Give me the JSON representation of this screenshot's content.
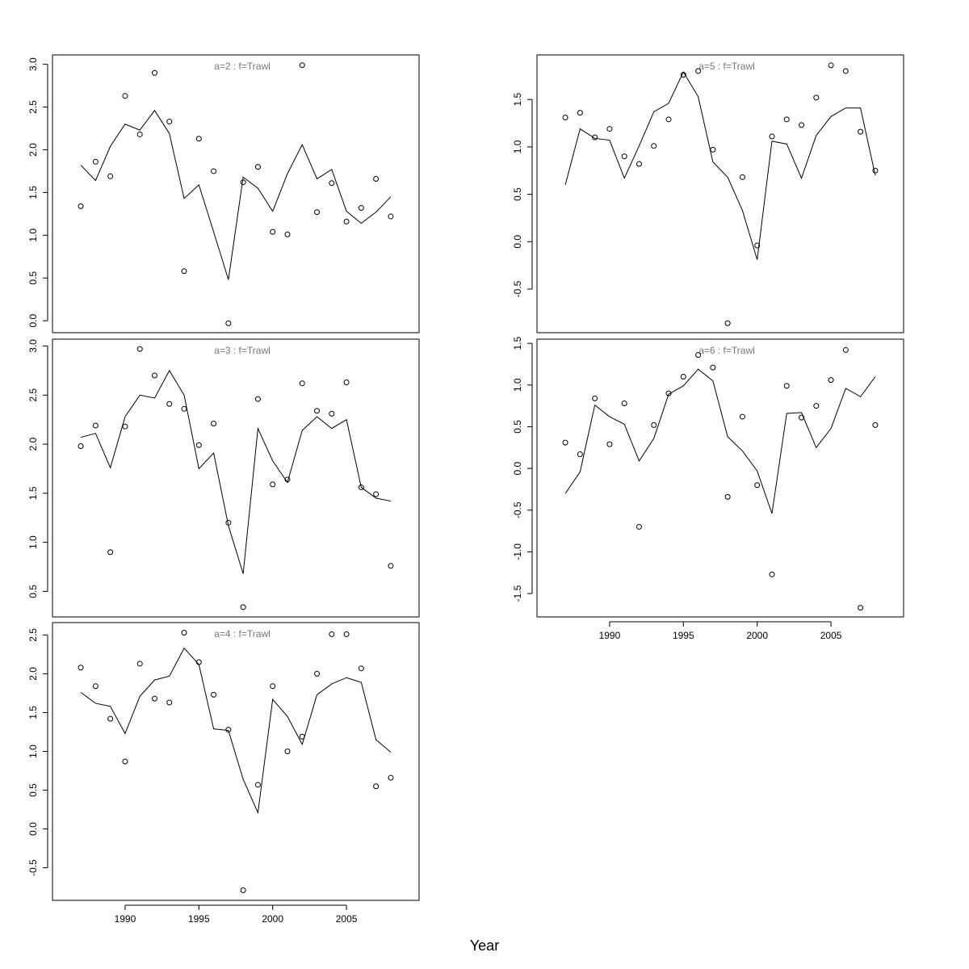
{
  "xlabel": "Year",
  "chart_data": [
    {
      "type": "line",
      "title": "a=2  :  f=Trawl",
      "x": [
        1987,
        1988,
        1989,
        1990,
        1991,
        1992,
        1993,
        1994,
        1995,
        1996,
        1997,
        1998,
        1999,
        2000,
        2001,
        2002,
        2003,
        2004,
        2005,
        2006,
        2007,
        2008
      ],
      "series": [
        {
          "style": "points",
          "color": "#000000",
          "values": [
            1.34,
            1.86,
            1.69,
            2.63,
            2.18,
            2.9,
            2.33,
            0.58,
            2.13,
            1.75,
            -0.03,
            1.62,
            1.8,
            1.04,
            1.01,
            2.99,
            1.27,
            1.61,
            1.16,
            1.32,
            1.66,
            1.22
          ]
        },
        {
          "style": "line",
          "color": "#000000",
          "values": [
            1.82,
            1.64,
            2.04,
            2.3,
            2.23,
            2.46,
            2.19,
            1.43,
            1.59,
            1.04,
            0.48,
            1.68,
            1.55,
            1.28,
            1.72,
            2.06,
            1.66,
            1.77,
            1.28,
            1.14,
            1.27,
            1.45
          ]
        }
      ],
      "xlim": [
        1985.08,
        2009.92
      ],
      "ylim": [
        -0.14,
        3.11
      ],
      "yticks": [
        {
          "value": 0,
          "label": "0.0"
        },
        0.5,
        {
          "value": 1,
          "label": "1.0"
        },
        1.5,
        {
          "value": 2,
          "label": "2.0"
        },
        2.5,
        {
          "value": 3,
          "label": "3.0"
        }
      ]
    },
    {
      "type": "line",
      "title": "a=3  :  f=Trawl",
      "x": [
        1987,
        1988,
        1989,
        1990,
        1991,
        1992,
        1993,
        1994,
        1995,
        1996,
        1997,
        1998,
        1999,
        2000,
        2001,
        2002,
        2003,
        2004,
        2005,
        2006,
        2007,
        2008
      ],
      "series": [
        {
          "style": "points",
          "color": "#000000",
          "values": [
            1.98,
            2.19,
            0.9,
            2.18,
            2.97,
            2.7,
            2.41,
            2.36,
            1.99,
            2.21,
            1.2,
            0.34,
            2.46,
            1.59,
            1.64,
            2.62,
            2.34,
            2.31,
            2.63,
            1.56,
            1.49,
            0.76
          ]
        },
        {
          "style": "line",
          "color": "#000000",
          "values": [
            2.07,
            2.11,
            1.76,
            2.28,
            2.5,
            2.47,
            2.75,
            2.5,
            1.75,
            1.91,
            1.17,
            0.68,
            2.16,
            1.83,
            1.61,
            2.14,
            2.28,
            2.16,
            2.25,
            1.56,
            1.45,
            1.42
          ]
        }
      ],
      "xlim": [
        1985.08,
        2009.92
      ],
      "ylim": [
        0.24,
        3.07
      ],
      "yticks": [
        0.5,
        {
          "value": 1,
          "label": "1.0"
        },
        1.5,
        {
          "value": 2,
          "label": "2.0"
        },
        2.5,
        {
          "value": 3,
          "label": "3.0"
        }
      ]
    },
    {
      "type": "line",
      "title": "a=4  :  f=Trawl",
      "x": [
        1987,
        1988,
        1989,
        1990,
        1991,
        1992,
        1993,
        1994,
        1995,
        1996,
        1997,
        1998,
        1999,
        2000,
        2001,
        2002,
        2003,
        2004,
        2005,
        2006,
        2007,
        2008
      ],
      "series": [
        {
          "style": "points",
          "color": "#000000",
          "values": [
            2.08,
            1.84,
            1.42,
            0.87,
            2.13,
            1.68,
            1.63,
            2.53,
            2.15,
            1.73,
            1.28,
            -0.79,
            0.57,
            1.84,
            1.0,
            1.19,
            2.0,
            2.51,
            2.51,
            2.07,
            0.55,
            0.66
          ]
        },
        {
          "style": "line",
          "color": "#000000",
          "values": [
            1.76,
            1.62,
            1.58,
            1.23,
            1.71,
            1.92,
            1.97,
            2.33,
            2.12,
            1.29,
            1.27,
            0.64,
            0.21,
            1.67,
            1.45,
            1.09,
            1.73,
            1.87,
            1.95,
            1.89,
            1.15,
            0.99
          ]
        }
      ],
      "xlim": [
        1985.08,
        2009.92
      ],
      "ylim": [
        -0.92,
        2.66
      ],
      "xticks": [
        1990,
        1995,
        2000,
        2005
      ],
      "yticks": [
        -0.5,
        {
          "value": 0,
          "label": "0.0"
        },
        0.5,
        {
          "value": 1,
          "label": "1.0"
        },
        1.5,
        {
          "value": 2,
          "label": "2.0"
        },
        2.5
      ]
    },
    {
      "type": "line",
      "title": "a=5  :  f=Trawl",
      "x": [
        1987,
        1988,
        1989,
        1990,
        1991,
        1992,
        1993,
        1994,
        1995,
        1996,
        1997,
        1998,
        1999,
        2000,
        2001,
        2002,
        2003,
        2004,
        2005,
        2006,
        2007,
        2008
      ],
      "series": [
        {
          "style": "points",
          "color": "#000000",
          "values": [
            1.31,
            1.36,
            1.1,
            1.19,
            0.9,
            0.82,
            1.01,
            1.29,
            1.76,
            1.8,
            0.97,
            -0.86,
            0.68,
            -0.04,
            1.11,
            1.29,
            1.23,
            1.52,
            1.86,
            1.8,
            1.16,
            0.75
          ]
        },
        {
          "style": "line",
          "color": "#000000",
          "values": [
            0.6,
            1.19,
            1.09,
            1.07,
            0.67,
            1.01,
            1.37,
            1.46,
            1.79,
            1.53,
            0.84,
            0.68,
            0.33,
            -0.19,
            1.06,
            1.03,
            0.67,
            1.12,
            1.32,
            1.41,
            1.41,
            0.7
          ]
        }
      ],
      "xlim": [
        1985.08,
        2009.92
      ],
      "ylim": [
        -0.96,
        1.97
      ],
      "yticks": [
        -0.5,
        {
          "value": 0,
          "label": "0.0"
        },
        0.5,
        {
          "value": 1,
          "label": "1.0"
        },
        1.5
      ]
    },
    {
      "type": "line",
      "title": "a=6  :  f=Trawl",
      "x": [
        1987,
        1988,
        1989,
        1990,
        1991,
        1992,
        1993,
        1994,
        1995,
        1996,
        1997,
        1998,
        1999,
        2000,
        2001,
        2002,
        2003,
        2004,
        2005,
        2006,
        2007,
        2008
      ],
      "series": [
        {
          "style": "points",
          "color": "#000000",
          "values": [
            0.31,
            0.17,
            0.84,
            0.29,
            0.78,
            -0.7,
            0.52,
            0.9,
            1.1,
            1.36,
            1.21,
            -0.34,
            0.62,
            -0.2,
            -1.27,
            0.99,
            0.61,
            0.75,
            1.06,
            1.42,
            -1.67,
            0.52
          ]
        },
        {
          "style": "line",
          "color": "#000000",
          "values": [
            -0.3,
            -0.04,
            0.76,
            0.62,
            0.53,
            0.09,
            0.36,
            0.89,
            0.99,
            1.19,
            1.05,
            0.38,
            0.21,
            -0.03,
            -0.54,
            0.66,
            0.67,
            0.25,
            0.48,
            0.96,
            0.86,
            1.1
          ]
        }
      ],
      "xlim": [
        1985.08,
        2009.92
      ],
      "ylim": [
        -1.78,
        1.55
      ],
      "xticks": [
        1990,
        1995,
        2000,
        2005
      ],
      "yticks": [
        {
          "value": -1.5,
          "label": "-1.5"
        },
        {
          "value": -1,
          "label": "-1.0"
        },
        -0.5,
        {
          "value": 0,
          "label": "0.0"
        },
        0.5,
        {
          "value": 1,
          "label": "1.0"
        },
        1.5
      ]
    }
  ]
}
